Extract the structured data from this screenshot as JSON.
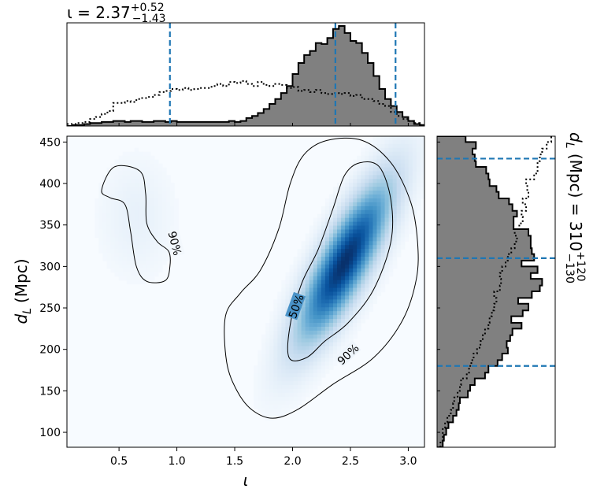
{
  "chart_data": [
    {
      "panel": "top-marginal",
      "type": "histogram",
      "title_main": "ι = 2.37",
      "title_sup": "+0.52",
      "title_sub": "−1.43",
      "xlim": [
        0.05,
        3.14
      ],
      "posterior_bins": [
        0.05,
        0.1,
        0.15,
        0.2,
        0.25,
        0.3,
        0.35,
        0.4,
        0.45,
        0.5,
        0.55,
        0.6,
        0.65,
        0.7,
        0.75,
        0.8,
        0.85,
        0.9,
        0.95,
        1.0,
        1.05,
        1.1,
        1.15,
        1.2,
        1.25,
        1.3,
        1.35,
        1.4,
        1.45,
        1.5,
        1.55,
        1.6,
        1.65,
        1.7,
        1.75,
        1.8,
        1.85,
        1.9,
        1.95,
        2.0,
        2.05,
        2.1,
        2.15,
        2.2,
        2.25,
        2.3,
        2.35,
        2.4,
        2.45,
        2.5,
        2.55,
        2.6,
        2.65,
        2.7,
        2.75,
        2.8,
        2.85,
        2.9,
        2.95,
        3.0,
        3.05,
        3.1,
        3.14
      ],
      "posterior_counts": [
        0.0,
        0.01,
        0.01,
        0.02,
        0.03,
        0.03,
        0.04,
        0.04,
        0.05,
        0.05,
        0.04,
        0.05,
        0.05,
        0.04,
        0.04,
        0.05,
        0.05,
        0.04,
        0.05,
        0.04,
        0.04,
        0.04,
        0.04,
        0.04,
        0.04,
        0.04,
        0.04,
        0.04,
        0.05,
        0.04,
        0.05,
        0.08,
        0.1,
        0.13,
        0.17,
        0.22,
        0.27,
        0.33,
        0.4,
        0.52,
        0.63,
        0.71,
        0.75,
        0.83,
        0.82,
        0.88,
        0.97,
        1.0,
        0.93,
        0.85,
        0.83,
        0.73,
        0.63,
        0.5,
        0.37,
        0.27,
        0.2,
        0.14,
        0.09,
        0.05,
        0.02,
        0.01
      ],
      "prior_counts": [
        0.02,
        0.02,
        0.03,
        0.04,
        0.07,
        0.09,
        0.12,
        0.15,
        0.23,
        0.23,
        0.25,
        0.24,
        0.27,
        0.28,
        0.29,
        0.31,
        0.34,
        0.35,
        0.37,
        0.36,
        0.38,
        0.36,
        0.37,
        0.38,
        0.38,
        0.4,
        0.42,
        0.4,
        0.44,
        0.43,
        0.45,
        0.42,
        0.4,
        0.44,
        0.41,
        0.4,
        0.42,
        0.41,
        0.38,
        0.39,
        0.35,
        0.36,
        0.34,
        0.36,
        0.33,
        0.32,
        0.33,
        0.32,
        0.33,
        0.3,
        0.31,
        0.27,
        0.27,
        0.25,
        0.22,
        0.2,
        0.14,
        0.1,
        0.07,
        0.05,
        0.03,
        0.01
      ],
      "quantile_lines": [
        0.94,
        2.37,
        2.89
      ],
      "line_color": "#1f77b4",
      "fill_color": "#808080"
    },
    {
      "panel": "joint",
      "type": "heatmap",
      "xlabel": "ι",
      "ylabel_main": "d",
      "ylabel_sub": "L",
      "ylabel_unit": "(Mpc)",
      "xlim": [
        0.05,
        3.14
      ],
      "ylim": [
        82,
        457
      ],
      "xticks": [
        0.5,
        1.0,
        1.5,
        2.0,
        2.5,
        3.0
      ],
      "xtick_labels": [
        "0.5",
        "1.0",
        "1.5",
        "2.0",
        "2.5",
        "3.0"
      ],
      "yticks": [
        100,
        150,
        200,
        250,
        300,
        350,
        400,
        450
      ],
      "ytick_labels": [
        "100",
        "150",
        "200",
        "250",
        "300",
        "350",
        "400",
        "450"
      ],
      "density_peak": {
        "x": 2.45,
        "y": 305
      },
      "contour_labels": [
        "90%",
        "90%",
        "50%"
      ],
      "contour_90_main": [
        [
          1.83,
          117
        ],
        [
          2.05,
          128
        ],
        [
          2.35,
          158
        ],
        [
          2.7,
          190
        ],
        [
          2.95,
          235
        ],
        [
          3.07,
          285
        ],
        [
          3.08,
          330
        ],
        [
          3.02,
          378
        ],
        [
          2.85,
          425
        ],
        [
          2.6,
          452
        ],
        [
          2.3,
          452
        ],
        [
          2.1,
          435
        ],
        [
          1.98,
          400
        ],
        [
          1.88,
          345
        ],
        [
          1.72,
          295
        ],
        [
          1.55,
          268
        ],
        [
          1.42,
          240
        ],
        [
          1.43,
          185
        ],
        [
          1.52,
          150
        ],
        [
          1.65,
          127
        ]
      ],
      "contour_90_small": [
        [
          0.46,
          420
        ],
        [
          0.68,
          415
        ],
        [
          0.73,
          388
        ],
        [
          0.74,
          352
        ],
        [
          0.83,
          330
        ],
        [
          0.93,
          318
        ],
        [
          0.94,
          300
        ],
        [
          0.9,
          283
        ],
        [
          0.74,
          282
        ],
        [
          0.65,
          300
        ],
        [
          0.6,
          342
        ],
        [
          0.55,
          375
        ],
        [
          0.42,
          383
        ],
        [
          0.35,
          392
        ]
      ],
      "contour_50": [
        [
          1.97,
          190
        ],
        [
          2.12,
          190
        ],
        [
          2.28,
          210
        ],
        [
          2.48,
          232
        ],
        [
          2.7,
          272
        ],
        [
          2.85,
          330
        ],
        [
          2.85,
          380
        ],
        [
          2.75,
          420
        ],
        [
          2.58,
          425
        ],
        [
          2.45,
          410
        ],
        [
          2.35,
          370
        ],
        [
          2.22,
          320
        ],
        [
          2.08,
          280
        ],
        [
          1.98,
          230
        ]
      ],
      "colormap": [
        "#f7fbff",
        "#deebf7",
        "#c6dbef",
        "#9ecae1",
        "#6baed6",
        "#4292c6",
        "#2171b5",
        "#08519c",
        "#08306b"
      ]
    },
    {
      "panel": "right-marginal",
      "type": "histogram",
      "orientation": "horizontal",
      "side_title_main": "d",
      "side_title_sub": "L",
      "side_title_rest": " (Mpc) = 310",
      "side_title_sup": "+120",
      "side_title_sub2": "−130",
      "ylim": [
        82,
        457
      ],
      "posterior_bins": [
        82,
        90,
        97,
        105,
        112,
        120,
        127,
        135,
        142,
        150,
        157,
        165,
        172,
        180,
        187,
        195,
        202,
        210,
        217,
        225,
        232,
        240,
        247,
        255,
        262,
        270,
        277,
        285,
        292,
        300,
        307,
        315,
        322,
        330,
        337,
        345,
        352,
        360,
        367,
        375,
        382,
        390,
        397,
        405,
        412,
        420,
        427,
        435,
        442,
        450,
        457
      ],
      "posterior_counts": [
        0.05,
        0.06,
        0.08,
        0.1,
        0.14,
        0.17,
        0.19,
        0.2,
        0.27,
        0.29,
        0.33,
        0.42,
        0.45,
        0.53,
        0.57,
        0.62,
        0.61,
        0.64,
        0.66,
        0.74,
        0.65,
        0.75,
        0.8,
        0.71,
        0.83,
        0.9,
        0.92,
        0.82,
        0.88,
        0.74,
        0.85,
        0.83,
        0.82,
        0.82,
        0.8,
        0.67,
        0.67,
        0.7,
        0.66,
        0.63,
        0.54,
        0.52,
        0.46,
        0.45,
        0.43,
        0.34,
        0.33,
        0.31,
        0.34,
        0.25
      ],
      "prior_counts": [
        0.03,
        0.05,
        0.05,
        0.07,
        0.09,
        0.12,
        0.14,
        0.15,
        0.18,
        0.2,
        0.21,
        0.26,
        0.28,
        0.3,
        0.32,
        0.35,
        0.38,
        0.4,
        0.42,
        0.45,
        0.46,
        0.48,
        0.5,
        0.52,
        0.5,
        0.55,
        0.56,
        0.55,
        0.57,
        0.6,
        0.62,
        0.65,
        0.68,
        0.7,
        0.68,
        0.72,
        0.75,
        0.74,
        0.78,
        0.75,
        0.8,
        0.79,
        0.78,
        0.85,
        0.88,
        0.88,
        0.9,
        0.92,
        0.96,
        1.0
      ],
      "quantile_lines": [
        180,
        310,
        430
      ],
      "line_color": "#1f77b4",
      "fill_color": "#808080"
    }
  ]
}
